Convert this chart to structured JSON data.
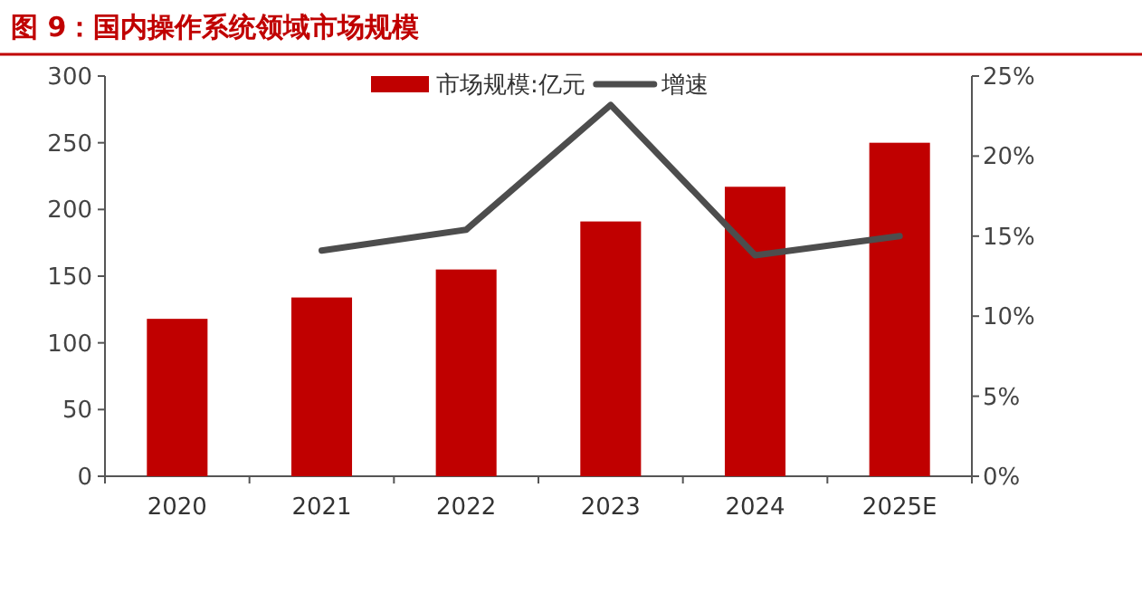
{
  "chart_data": {
    "type": "bar",
    "title": "图 9：国内操作系统领域市场规模",
    "categories": [
      "2020",
      "2021",
      "2022",
      "2023",
      "2024",
      "2025E"
    ],
    "series": [
      {
        "name": "市场规模:亿元",
        "color": "#c00000",
        "values": [
          118,
          134,
          155,
          191,
          217,
          250
        ]
      },
      {
        "name": "增速",
        "type": "line",
        "axis": "y2",
        "color": "#4d4d4d",
        "marker": "none",
        "values": [
          null,
          14.1,
          15.4,
          23.2,
          13.8,
          15.0
        ]
      }
    ],
    "ylim": [
      0,
      300
    ],
    "yticks": [
      0,
      50,
      100,
      150,
      200,
      250,
      300
    ],
    "y2lim": [
      0,
      25
    ],
    "y2ticks": [
      {
        "value": 0,
        "label": "0%"
      },
      {
        "value": 5,
        "label": "5%"
      },
      {
        "value": 10,
        "label": "10%"
      },
      {
        "value": 15,
        "label": "15%"
      },
      {
        "value": 20,
        "label": "20%"
      },
      {
        "value": 25,
        "label": "25%"
      }
    ],
    "grid": false,
    "legend": "top"
  }
}
